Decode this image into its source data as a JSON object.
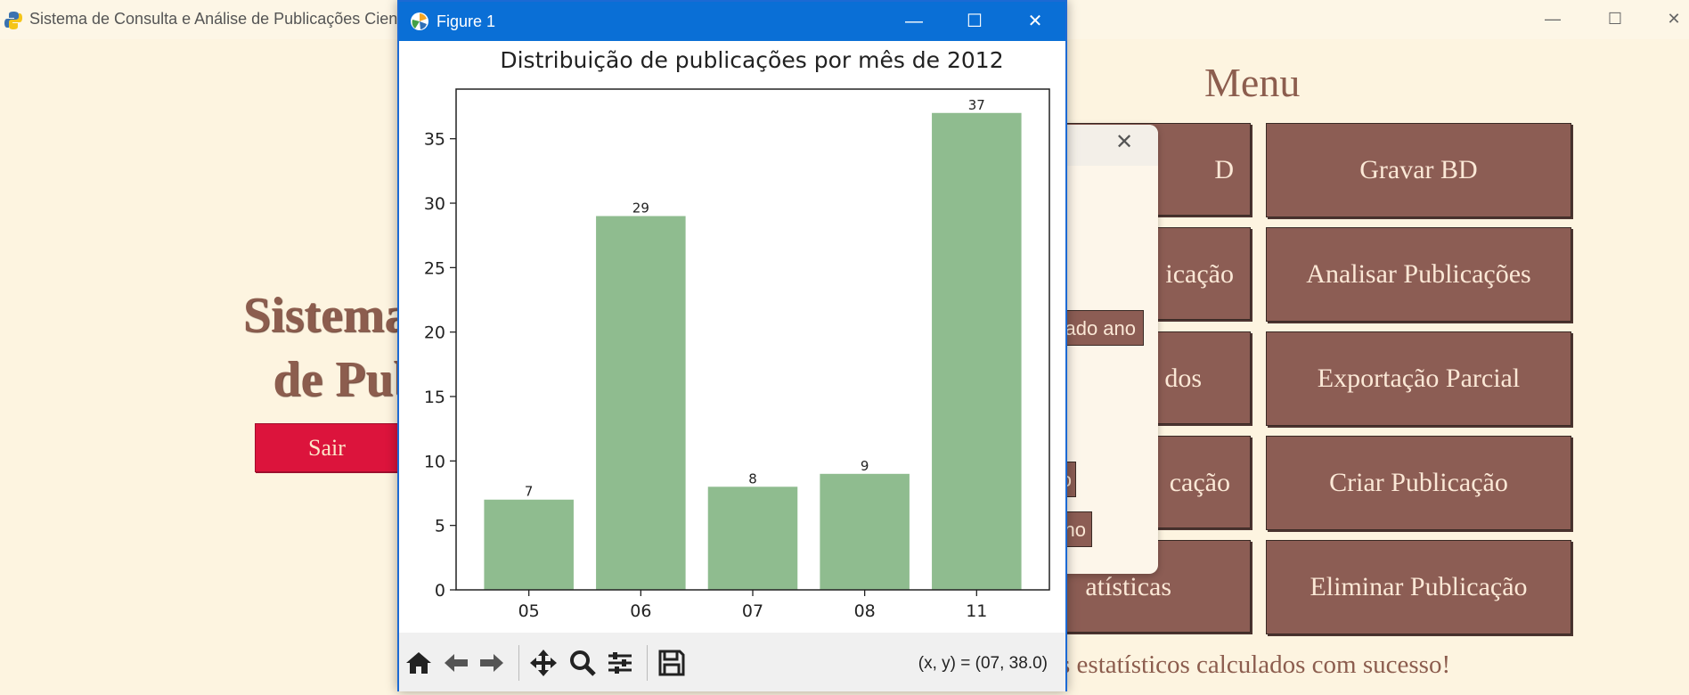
{
  "main_window": {
    "title": "Sistema de Consulta e Análise de Publicações Científ",
    "app_title_line1": "Sistema de Con",
    "app_title_line2": "de Publicaçõ",
    "exit_label": "Sair",
    "menu_title": "Menu",
    "menu_buttons": [
      {
        "label": "D"
      },
      {
        "label": "Gravar BD"
      },
      {
        "label": "icação"
      },
      {
        "label": "Analisar Publicações"
      },
      {
        "label": "dos"
      },
      {
        "label": "Exportação Parcial"
      },
      {
        "label": "cação"
      },
      {
        "label": "Criar Publicação"
      },
      {
        "label": "atísticas"
      },
      {
        "label": "Eliminar Publicação"
      }
    ],
    "status_message": "s estatísticos calculados com sucesso!"
  },
  "dialog": {
    "button_year": "ado ano",
    "button_small": "o",
    "button_no": "no"
  },
  "figure_window": {
    "title": "Figure 1",
    "coordinates": "(x, y) = (07, 38.0)",
    "toolbar": [
      "home-icon",
      "back-icon",
      "forward-icon",
      "pan-icon",
      "zoom-icon",
      "configure-icon",
      "save-icon"
    ]
  },
  "colors": {
    "bar": "#8fbc8f",
    "menu_button": "#8c5d54",
    "exit_button": "#dc143c",
    "titlebar": "#0a6fd6"
  },
  "chart_data": {
    "type": "bar",
    "title": "Distribuição de publicações por mês de 2012",
    "categories": [
      "05",
      "06",
      "07",
      "08",
      "11"
    ],
    "values": [
      7,
      29,
      8,
      9,
      37
    ],
    "yticks": [
      0,
      5,
      10,
      15,
      20,
      25,
      30,
      35
    ],
    "ylim": [
      0,
      38.85
    ],
    "xlabel": "",
    "ylabel": ""
  }
}
